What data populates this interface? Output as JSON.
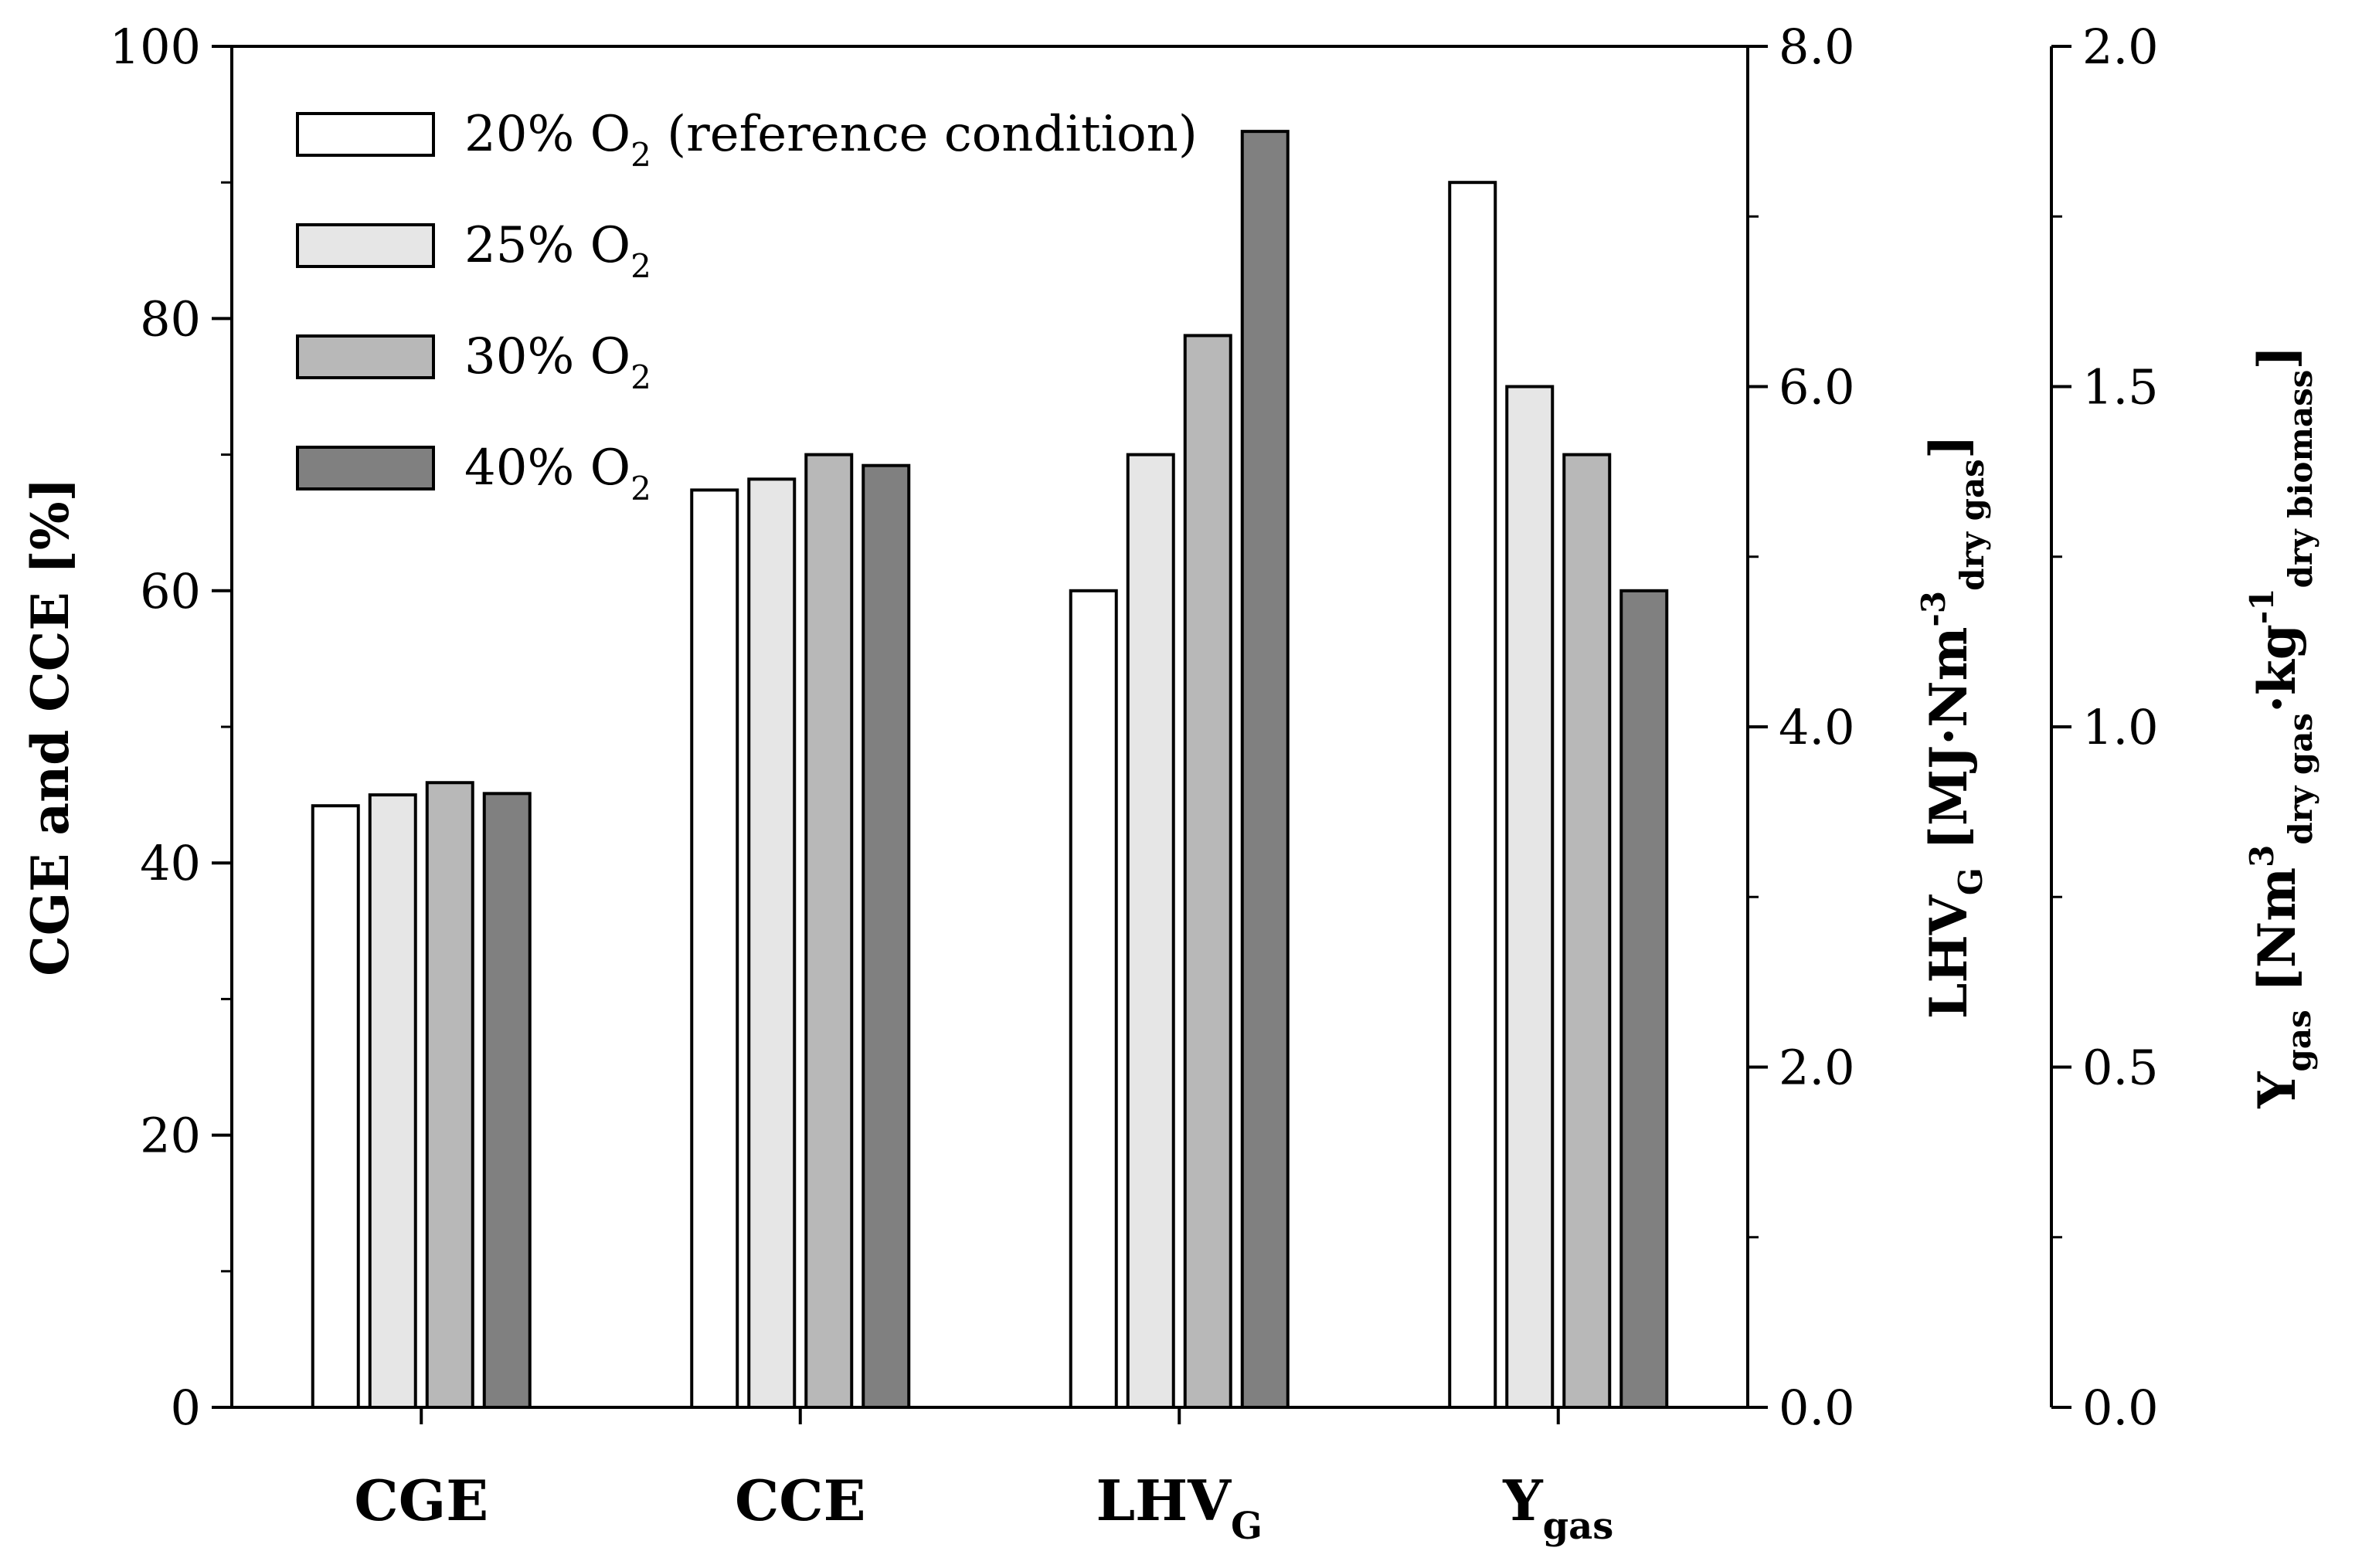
{
  "chart_data": {
    "type": "bar",
    "categories": [
      {
        "label": "CGE",
        "sub": ""
      },
      {
        "label": "CCE",
        "sub": ""
      },
      {
        "label": "LHV",
        "sub": "G"
      },
      {
        "label": "Y",
        "sub": "gas"
      }
    ],
    "series": [
      {
        "name": "20% O2 (reference condition)",
        "legend_main": "20% O",
        "legend_sub": "2",
        "legend_tail": " (reference condition)",
        "color": "#ffffff",
        "values": [
          44.2,
          67.4,
          4.8,
          1.8
        ]
      },
      {
        "name": "25% O2",
        "legend_main": "25% O",
        "legend_sub": "2",
        "legend_tail": "",
        "color": "#e6e6e6",
        "values": [
          45.0,
          68.2,
          5.6,
          1.5
        ]
      },
      {
        "name": "30% O2",
        "legend_main": "30% O",
        "legend_sub": "2",
        "legend_tail": "",
        "color": "#b8b8b8",
        "values": [
          45.9,
          70.0,
          6.3,
          1.4
        ]
      },
      {
        "name": "40% O2",
        "legend_main": "40% O",
        "legend_sub": "2",
        "legend_tail": "",
        "color": "#808080",
        "values": [
          45.1,
          69.2,
          7.5,
          1.2
        ]
      }
    ],
    "axes": [
      {
        "id": "left",
        "range": [
          0,
          100
        ],
        "major_ticks": [
          0,
          20,
          40,
          60,
          80,
          100
        ],
        "tick_labels": [
          "0",
          "20",
          "40",
          "60",
          "80",
          "100"
        ],
        "minor_step": 10,
        "applies_to_categories": [
          0,
          1
        ]
      },
      {
        "id": "right1",
        "range": [
          0,
          8
        ],
        "major_ticks": [
          0,
          2,
          4,
          6,
          8
        ],
        "tick_labels": [
          "0.0",
          "2.0",
          "4.0",
          "6.0",
          "8.0"
        ],
        "minor_step": 1,
        "applies_to_categories": [
          2
        ]
      },
      {
        "id": "right2",
        "range": [
          0,
          2
        ],
        "major_ticks": [
          0,
          0.5,
          1,
          1.5,
          2
        ],
        "tick_labels": [
          "0.0",
          "0.5",
          "1.0",
          "1.5",
          "2.0"
        ],
        "minor_step": 0.25,
        "applies_to_categories": [
          3
        ]
      }
    ],
    "ylabel_left": "CGE and CCE [%]",
    "ylabel_right1": {
      "p1": "LHV",
      "p1_sub": "G",
      "p2": " [MJ·Nm",
      "p2_sup": "-3",
      "p3_sub": "dry gas",
      "p4": "]"
    },
    "ylabel_right2": {
      "p1": "Y",
      "p1_sub": "gas",
      "p2": " [Nm",
      "p2_sup": "3",
      "p3_sub": "dry gas",
      "p4": "·kg",
      "p4_sup": "-1",
      "p5_sub": "dry biomass",
      "p6": "]"
    },
    "legend_position": "top-left",
    "grid": false
  }
}
